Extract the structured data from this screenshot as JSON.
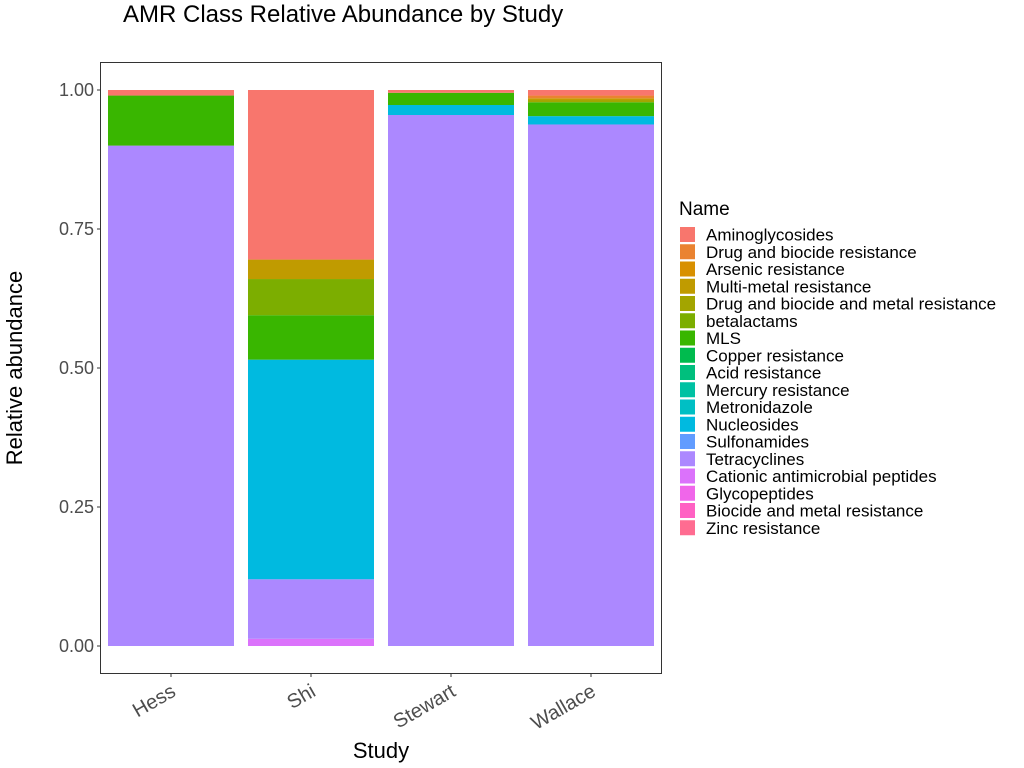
{
  "chart_data": {
    "type": "bar",
    "stacked": true,
    "title": "AMR Class Relative Abundance by Study",
    "xlabel": "Study",
    "ylabel": "Relative abundance",
    "ylim": [
      0,
      1
    ],
    "yticks": [
      "0.00",
      "0.25",
      "0.50",
      "0.75",
      "1.00"
    ],
    "categories": [
      "Hess",
      "Shi",
      "Stewart",
      "Wallace"
    ],
    "legend": {
      "title": "Name",
      "position": "right"
    },
    "grid": false,
    "series": [
      {
        "name": "Aminoglycosides",
        "color": "#F8766D",
        "values": [
          0.01,
          0.305,
          0.005,
          0.01
        ]
      },
      {
        "name": "Drug and biocide resistance",
        "color": "#EA8331",
        "values": [
          0,
          0,
          0,
          0.005
        ]
      },
      {
        "name": "Arsenic resistance",
        "color": "#D89000",
        "values": [
          0,
          0,
          0,
          0
        ]
      },
      {
        "name": "Multi-metal resistance",
        "color": "#C09B00",
        "values": [
          0,
          0.035,
          0,
          0.003
        ]
      },
      {
        "name": "Drug and biocide and metal resistance",
        "color": "#A3A500",
        "values": [
          0,
          0,
          0,
          0.004
        ]
      },
      {
        "name": "betalactams",
        "color": "#7CAE00",
        "values": [
          0,
          0.065,
          0,
          0
        ]
      },
      {
        "name": "MLS",
        "color": "#39B600",
        "values": [
          0.09,
          0.08,
          0.022,
          0.025
        ]
      },
      {
        "name": "Copper resistance",
        "color": "#00BB4E",
        "values": [
          0,
          0,
          0,
          0
        ]
      },
      {
        "name": "Acid resistance",
        "color": "#00BF7D",
        "values": [
          0,
          0,
          0,
          0
        ]
      },
      {
        "name": "Mercury resistance",
        "color": "#00C1A3",
        "values": [
          0,
          0,
          0,
          0
        ]
      },
      {
        "name": "Metronidazole",
        "color": "#00BFC4",
        "values": [
          0,
          0,
          0,
          0
        ]
      },
      {
        "name": "Nucleosides",
        "color": "#00BAE0",
        "values": [
          0,
          0.395,
          0.018,
          0.015
        ]
      },
      {
        "name": "Sulfonamides",
        "color": "#619CFF",
        "values": [
          0,
          0,
          0,
          0
        ]
      },
      {
        "name": "Tetracyclines",
        "color": "#AC88FF",
        "values": [
          0.9,
          0.107,
          0.955,
          0.938
        ]
      },
      {
        "name": "Cationic antimicrobial peptides",
        "color": "#DB72FB",
        "values": [
          0,
          0.013,
          0,
          0
        ]
      },
      {
        "name": "Glycopeptides",
        "color": "#F066EA",
        "values": [
          0,
          0,
          0,
          0
        ]
      },
      {
        "name": "Biocide and metal resistance",
        "color": "#FF61C3",
        "values": [
          0,
          0,
          0,
          0
        ]
      },
      {
        "name": "Zinc resistance",
        "color": "#FF6C91",
        "values": [
          0,
          0,
          0,
          0
        ]
      }
    ]
  }
}
